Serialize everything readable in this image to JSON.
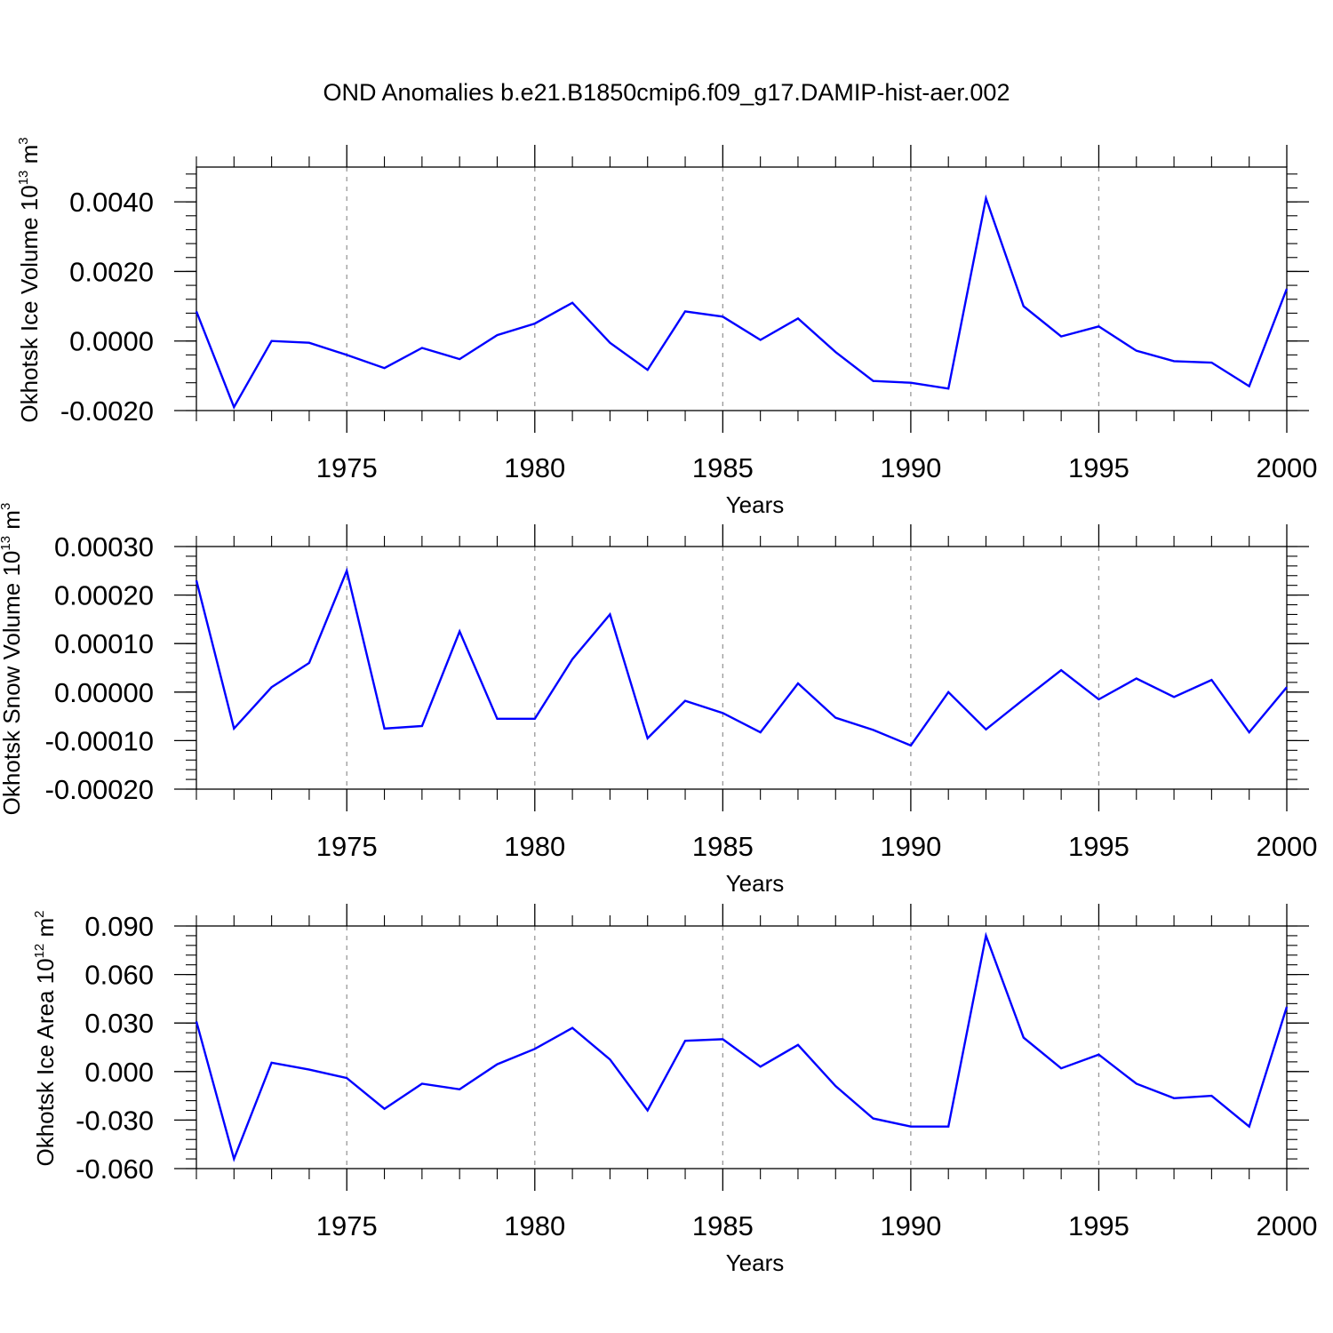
{
  "title": "OND Anomalies b.e21.B1850cmip6.f09_g17.DAMIP-hist-aer.002",
  "chart_data": [
    {
      "type": "line",
      "xlabel": "Years",
      "ylabel": {
        "text": "Okhotsk Ice Volume 10",
        "exp": "13",
        "unit": "m",
        "unit_exp": "3"
      },
      "xlim": [
        1971,
        2000
      ],
      "ylim": [
        -0.002,
        0.005
      ],
      "x_ticks": [
        "1975",
        "1980",
        "1985",
        "1990",
        "1995",
        "2000"
      ],
      "y_ticks": [
        "-0.0020",
        "0.0000",
        "0.0020",
        "0.0040"
      ],
      "color": "#0000ff",
      "x": [
        1971,
        1972,
        1973,
        1974,
        1975,
        1976,
        1977,
        1978,
        1979,
        1980,
        1981,
        1982,
        1983,
        1984,
        1985,
        1986,
        1987,
        1988,
        1989,
        1990,
        1991,
        1992,
        1993,
        1994,
        1995,
        1996,
        1997,
        1998,
        1999,
        2000
      ],
      "values": [
        0.00085,
        -0.0019,
        0.0,
        -5e-05,
        -0.0004,
        -0.00078,
        -0.0002,
        -0.00052,
        0.00017,
        0.0005,
        0.0011,
        -5e-05,
        -0.00083,
        0.00085,
        0.0007,
        3e-05,
        0.00065,
        -0.00032,
        -0.00115,
        -0.0012,
        -0.00137,
        0.0041,
        0.001,
        0.00013,
        0.00042,
        -0.00028,
        -0.00058,
        -0.00062,
        -0.0013,
        0.0015
      ]
    },
    {
      "type": "line",
      "xlabel": "Years",
      "ylabel": {
        "text": "Okhotsk Snow Volume 10",
        "exp": "13",
        "unit": "m",
        "unit_exp": "3"
      },
      "xlim": [
        1971,
        2000
      ],
      "ylim": [
        -0.0002,
        0.0003
      ],
      "x_ticks": [
        "1975",
        "1980",
        "1985",
        "1990",
        "1995",
        "2000"
      ],
      "y_ticks": [
        "-0.00020",
        "-0.00010",
        "0.00000",
        "0.00010",
        "0.00020",
        "0.00030"
      ],
      "color": "#0000ff",
      "x": [
        1971,
        1972,
        1973,
        1974,
        1975,
        1976,
        1977,
        1978,
        1979,
        1980,
        1981,
        1982,
        1983,
        1984,
        1985,
        1986,
        1987,
        1988,
        1989,
        1990,
        1991,
        1992,
        1993,
        1994,
        1995,
        1996,
        1997,
        1998,
        1999,
        2000
      ],
      "values": [
        0.00023,
        -7.5e-05,
        1e-05,
        6e-05,
        0.00025,
        -7.5e-05,
        -7e-05,
        0.000125,
        -5.5e-05,
        -5.5e-05,
        6.8e-05,
        0.00016,
        -9.5e-05,
        -1.8e-05,
        -4.3e-05,
        -8.3e-05,
        1.8e-05,
        -5.3e-05,
        -7.8e-05,
        -0.00011,
        0.0,
        -7.7e-05,
        -1.5e-05,
        4.5e-05,
        -1.5e-05,
        2.8e-05,
        -1e-05,
        2.5e-05,
        -8.3e-05,
        1e-05
      ]
    },
    {
      "type": "line",
      "xlabel": "Years",
      "ylabel": {
        "text": "Okhotsk Ice Area 10",
        "exp": "12",
        "unit": "m",
        "unit_exp": "2"
      },
      "xlim": [
        1971,
        2000
      ],
      "ylim": [
        -0.06,
        0.09
      ],
      "x_ticks": [
        "1975",
        "1980",
        "1985",
        "1990",
        "1995",
        "2000"
      ],
      "y_ticks": [
        "-0.060",
        "-0.030",
        "0.000",
        "0.030",
        "0.060",
        "0.090"
      ],
      "color": "#0000ff",
      "x": [
        1971,
        1972,
        1973,
        1974,
        1975,
        1976,
        1977,
        1978,
        1979,
        1980,
        1981,
        1982,
        1983,
        1984,
        1985,
        1986,
        1987,
        1988,
        1989,
        1990,
        1991,
        1992,
        1993,
        1994,
        1995,
        1996,
        1997,
        1998,
        1999,
        2000
      ],
      "values": [
        0.031,
        -0.054,
        0.0055,
        0.0012,
        -0.004,
        -0.023,
        -0.0075,
        -0.011,
        0.0045,
        0.014,
        0.027,
        0.0075,
        -0.024,
        0.019,
        0.02,
        0.003,
        0.0165,
        -0.009,
        -0.029,
        -0.034,
        -0.034,
        0.084,
        0.021,
        0.002,
        0.0105,
        -0.0075,
        -0.0165,
        -0.015,
        -0.034,
        0.04
      ]
    }
  ]
}
